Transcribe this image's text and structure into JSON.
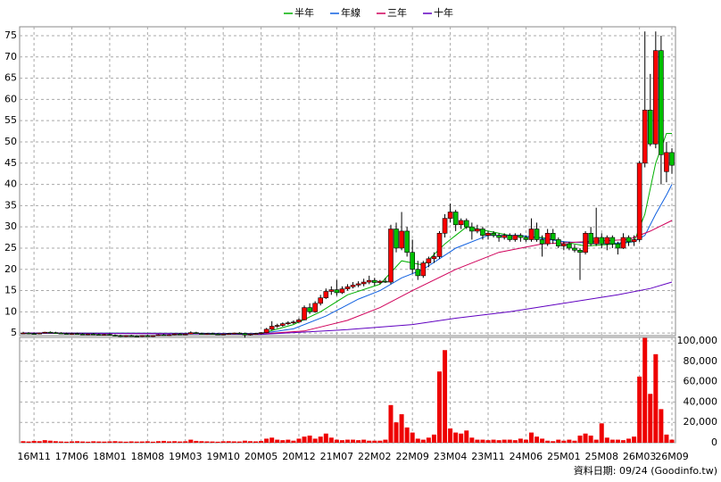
{
  "chart_data": {
    "type": "candlestick",
    "legend": [
      {
        "name": "半年",
        "color": "#00b000"
      },
      {
        "name": "年線",
        "color": "#1060e0"
      },
      {
        "name": "三年",
        "color": "#d0005a"
      },
      {
        "name": "十年",
        "color": "#6000c0"
      }
    ],
    "categories": [
      null,
      null,
      "16M11",
      null,
      null,
      null,
      null,
      null,
      null,
      "17M06",
      null,
      null,
      null,
      null,
      null,
      null,
      "18M01",
      null,
      null,
      null,
      null,
      null,
      null,
      "18M08",
      null,
      null,
      null,
      null,
      null,
      null,
      "19M03",
      null,
      null,
      null,
      null,
      null,
      null,
      "19M10",
      null,
      null,
      null,
      null,
      null,
      null,
      "20M05",
      null,
      null,
      null,
      null,
      null,
      null,
      "20M12",
      null,
      null,
      null,
      null,
      null,
      null,
      "21M07",
      null,
      null,
      null,
      null,
      null,
      null,
      "22M02",
      null,
      null,
      null,
      null,
      null,
      null,
      "22M09",
      null,
      null,
      null,
      null,
      null,
      null,
      "23M04",
      null,
      null,
      null,
      null,
      null,
      null,
      "23M11",
      null,
      null,
      null,
      null,
      null,
      null,
      "24M06",
      null,
      null,
      null,
      null,
      null,
      null,
      "25M01",
      null,
      null,
      null,
      null,
      null,
      null,
      "25M08",
      null,
      null,
      null,
      null,
      null,
      null,
      "26M03",
      null,
      null,
      null,
      null,
      null,
      "26M09"
    ],
    "up_color": "#ff0000",
    "down_color": "#00c000",
    "candles": [
      [
        5,
        5.3,
        4.8,
        5
      ],
      [
        5,
        5.2,
        4.7,
        4.9
      ],
      [
        4.9,
        5.1,
        4.7,
        4.8
      ],
      [
        4.8,
        5.1,
        4.7,
        5
      ],
      [
        5,
        5.3,
        4.9,
        5.2
      ],
      [
        5.2,
        5.4,
        5,
        5.1
      ],
      [
        5.1,
        5.3,
        4.9,
        5
      ],
      [
        5,
        5.2,
        4.8,
        4.9
      ],
      [
        4.9,
        5.1,
        4.7,
        4.8
      ],
      [
        4.8,
        5,
        4.6,
        4.9
      ],
      [
        4.9,
        5.1,
        4.7,
        4.8
      ],
      [
        4.8,
        5,
        4.6,
        4.7
      ],
      [
        4.7,
        4.9,
        4.5,
        4.8
      ],
      [
        4.8,
        5,
        4.6,
        4.7
      ],
      [
        4.7,
        4.9,
        4.5,
        4.6
      ],
      [
        4.6,
        4.8,
        4.4,
        4.7
      ],
      [
        4.7,
        4.9,
        4.4,
        4.5
      ],
      [
        4.5,
        4.7,
        4.2,
        4.4
      ],
      [
        4.4,
        4.6,
        4.1,
        4.3
      ],
      [
        4.3,
        4.5,
        4.1,
        4.4
      ],
      [
        4.4,
        4.6,
        4.2,
        4.3
      ],
      [
        4.3,
        4.5,
        4.1,
        4.2
      ],
      [
        4.2,
        4.5,
        4.1,
        4.4
      ],
      [
        4.4,
        4.6,
        4.2,
        4.3
      ],
      [
        4.3,
        4.5,
        4.1,
        4.4
      ],
      [
        4.4,
        4.7,
        4.3,
        4.6
      ],
      [
        4.6,
        4.8,
        4.4,
        4.5
      ],
      [
        4.5,
        4.7,
        4.3,
        4.6
      ],
      [
        4.6,
        4.9,
        4.5,
        4.8
      ],
      [
        4.8,
        5,
        4.6,
        4.7
      ],
      [
        4.7,
        4.9,
        4.5,
        4.8
      ],
      [
        4.8,
        5.4,
        4.7,
        5.1
      ],
      [
        5.1,
        5.3,
        4.8,
        4.9
      ],
      [
        4.9,
        5.1,
        4.7,
        4.8
      ],
      [
        4.8,
        5,
        4.6,
        4.9
      ],
      [
        4.9,
        5.1,
        4.7,
        4.8
      ],
      [
        4.8,
        5,
        4.6,
        4.7
      ],
      [
        4.7,
        4.9,
        4.5,
        4.8
      ],
      [
        4.8,
        5,
        4.6,
        4.9
      ],
      [
        4.9,
        5.1,
        4.7,
        5
      ],
      [
        5,
        5.2,
        4.8,
        4.9
      ],
      [
        4.9,
        5.1,
        3.9,
        4.6
      ],
      [
        4.6,
        4.9,
        4.4,
        4.8
      ],
      [
        4.8,
        5,
        4.6,
        4.9
      ],
      [
        4.9,
        5.2,
        4.7,
        5.1
      ],
      [
        5.1,
        6.2,
        5,
        5.9
      ],
      [
        5.9,
        7.8,
        5.7,
        6.6
      ],
      [
        6.6,
        7.2,
        6.2,
        6.8
      ],
      [
        6.8,
        7.5,
        6.5,
        7.2
      ],
      [
        7.2,
        7.8,
        6.9,
        7.4
      ],
      [
        7.4,
        8,
        7.1,
        7.6
      ],
      [
        7.6,
        8.5,
        7.4,
        8.1
      ],
      [
        8.1,
        11.5,
        8,
        11
      ],
      [
        11,
        12,
        9.5,
        10
      ],
      [
        10,
        12.5,
        9.8,
        12
      ],
      [
        12,
        14,
        11.5,
        13.3
      ],
      [
        13.3,
        15.5,
        13,
        14.8
      ],
      [
        14.8,
        16,
        14,
        15.2
      ],
      [
        15.2,
        17.5,
        13.8,
        14.5
      ],
      [
        14.5,
        16,
        14.2,
        15.4
      ],
      [
        15.4,
        16.5,
        15,
        15.9
      ],
      [
        15.9,
        17,
        15.5,
        16.3
      ],
      [
        16.3,
        17.2,
        15.8,
        16.6
      ],
      [
        16.6,
        17.8,
        16,
        17
      ],
      [
        17,
        18.5,
        16.5,
        17.4
      ],
      [
        17.4,
        18,
        16.2,
        16.9
      ],
      [
        16.9,
        17.5,
        16.5,
        17.2
      ],
      [
        17.2,
        18,
        16.8,
        17
      ],
      [
        17,
        30.5,
        16.5,
        29.5
      ],
      [
        29.5,
        31,
        24,
        25
      ],
      [
        25,
        33.5,
        24.5,
        29
      ],
      [
        29,
        30,
        23,
        24
      ],
      [
        24,
        27,
        19,
        20
      ],
      [
        20,
        22,
        17.5,
        18.5
      ],
      [
        18.5,
        22,
        18,
        21.5
      ],
      [
        21.5,
        23,
        20.5,
        22.5
      ],
      [
        22.5,
        24,
        21.5,
        23
      ],
      [
        23,
        29,
        22.5,
        28.5
      ],
      [
        28.5,
        33,
        27.5,
        32
      ],
      [
        32,
        35.5,
        31,
        33.5
      ],
      [
        33.5,
        34,
        29,
        30.5
      ],
      [
        30.5,
        32,
        29.5,
        31.5
      ],
      [
        31.5,
        32,
        29.5,
        30
      ],
      [
        30,
        31,
        27,
        29
      ],
      [
        29,
        30.5,
        28.5,
        29.5
      ],
      [
        29.5,
        30,
        27,
        28
      ],
      [
        28,
        29,
        27,
        28.5
      ],
      [
        28.5,
        29,
        27.5,
        28
      ],
      [
        28,
        28.5,
        26.5,
        27.5
      ],
      [
        27.5,
        28.5,
        27,
        28
      ],
      [
        28,
        28.5,
        26.5,
        27
      ],
      [
        27,
        28.5,
        26.5,
        28
      ],
      [
        28,
        28.5,
        26.5,
        27.5
      ],
      [
        27.5,
        28,
        26.5,
        27
      ],
      [
        27,
        32,
        26.5,
        29.5
      ],
      [
        29.5,
        31,
        26.5,
        27
      ],
      [
        27,
        28,
        23,
        26
      ],
      [
        26,
        29.5,
        25.5,
        28.5
      ],
      [
        28.5,
        29.5,
        26,
        27
      ],
      [
        27,
        27.5,
        25,
        25.5
      ],
      [
        25.5,
        26.5,
        24.5,
        26
      ],
      [
        26,
        26.5,
        24.5,
        25
      ],
      [
        25,
        25.8,
        24,
        24.5
      ],
      [
        24.5,
        25,
        17.5,
        24
      ],
      [
        24,
        29,
        23.5,
        28.5
      ],
      [
        28.5,
        30,
        25.5,
        26
      ],
      [
        26,
        34.5,
        25.5,
        27.5
      ],
      [
        27.5,
        28.5,
        25,
        26
      ],
      [
        26,
        28,
        24.5,
        27.5
      ],
      [
        27.5,
        28,
        25,
        26
      ],
      [
        26,
        26.5,
        23.5,
        25
      ],
      [
        25,
        28.5,
        24.8,
        27.5
      ],
      [
        27.5,
        28,
        25.5,
        26.5
      ],
      [
        26.5,
        28,
        25.5,
        27
      ],
      [
        27,
        45.5,
        26.5,
        45
      ],
      [
        45,
        76,
        44,
        57.5
      ],
      [
        57.5,
        66,
        49,
        49.5
      ],
      [
        49.5,
        76,
        48.5,
        71.5
      ],
      [
        71.5,
        75,
        40,
        47
      ],
      [
        43,
        50,
        40.5,
        47.5
      ],
      [
        47.5,
        48.5,
        42.5,
        44.5
      ]
    ],
    "ylim": [
      4.4,
      77.1
    ],
    "yticks": [
      5,
      10,
      15,
      20,
      25,
      30,
      35,
      40,
      45,
      50,
      55,
      60,
      65,
      70,
      75
    ],
    "lines": [
      {
        "color": "#00b000",
        "x": [
          0,
          44,
          50,
          55,
          60,
          66,
          70,
          74,
          78,
          82,
          86,
          90,
          96,
          104,
          110,
          113,
          115,
          117,
          119,
          120
        ],
        "values": [
          5,
          4.9,
          7,
          10,
          14,
          16.5,
          22,
          21,
          26,
          30,
          29,
          28,
          27.5,
          25.5,
          26,
          26.5,
          33,
          45,
          52,
          52
        ]
      },
      {
        "color": "#1060e0",
        "x": [
          0,
          44,
          50,
          56,
          62,
          66,
          70,
          74,
          80,
          86,
          92,
          100,
          108,
          113,
          115,
          117,
          119,
          120
        ],
        "values": [
          5,
          4.9,
          6,
          9,
          13,
          15,
          18,
          20,
          25,
          28,
          28,
          26.5,
          26,
          26.5,
          28,
          33,
          37.5,
          40
        ]
      },
      {
        "color": "#d0005a",
        "x": [
          0,
          44,
          52,
          60,
          66,
          72,
          80,
          88,
          96,
          104,
          112,
          116,
          120
        ],
        "values": [
          5,
          4.8,
          5.5,
          8,
          11,
          15,
          20,
          24,
          26,
          26.5,
          27,
          29,
          31.5
        ]
      },
      {
        "color": "#6000c0",
        "x": [
          0,
          44,
          60,
          72,
          80,
          90,
          100,
          110,
          116,
          120
        ],
        "values": [
          5,
          4.7,
          5.8,
          7,
          8.5,
          10,
          12,
          14,
          15.5,
          17
        ]
      }
    ],
    "volume_color": "#ee0000",
    "volume": [
      1500,
      1200,
      1800,
      1500,
      2500,
      2000,
      1500,
      1200,
      1000,
      1300,
      1500,
      1200,
      1000,
      1400,
      1200,
      1100,
      1300,
      1500,
      1200,
      1000,
      1300,
      1100,
      1200,
      1400,
      1000,
      1500,
      1800,
      1300,
      1500,
      1200,
      1400,
      3000,
      1800,
      1500,
      1300,
      1200,
      1000,
      1400,
      1500,
      1300,
      1200,
      2000,
      1500,
      1300,
      1800,
      4000,
      5000,
      3000,
      2500,
      3000,
      2000,
      4000,
      6000,
      7000,
      4000,
      6000,
      9000,
      5000,
      3000,
      2500,
      3000,
      3000,
      2500,
      3000,
      2000,
      2000,
      2000,
      3000,
      37000,
      20000,
      28000,
      15000,
      10000,
      4000,
      3000,
      5000,
      8000,
      70000,
      91000,
      14000,
      10000,
      9000,
      12000,
      5000,
      3000,
      3000,
      2500,
      3000,
      2500,
      3000,
      3000,
      2500,
      4000,
      3000,
      10000,
      6000,
      4000,
      2000,
      1500,
      3000,
      2000,
      3000,
      2000,
      7000,
      9000,
      7000,
      3000,
      19000,
      5000,
      3000,
      3000,
      2500,
      4000,
      6000,
      65000,
      103000,
      48000,
      87000,
      33000,
      8000,
      3000
    ],
    "y2lim": [
      0,
      103500
    ],
    "y2ticks": [
      0,
      {
        "value": 20000,
        "label": "20,000"
      },
      {
        "value": 40000,
        "label": "40,000"
      },
      {
        "value": 60000,
        "label": "60,000"
      },
      {
        "value": 80000,
        "label": "80,000"
      },
      {
        "value": 100000,
        "label": "100,000"
      }
    ],
    "grid": true,
    "footer": "資料日期: 09/24  (Goodinfo.tw)"
  }
}
